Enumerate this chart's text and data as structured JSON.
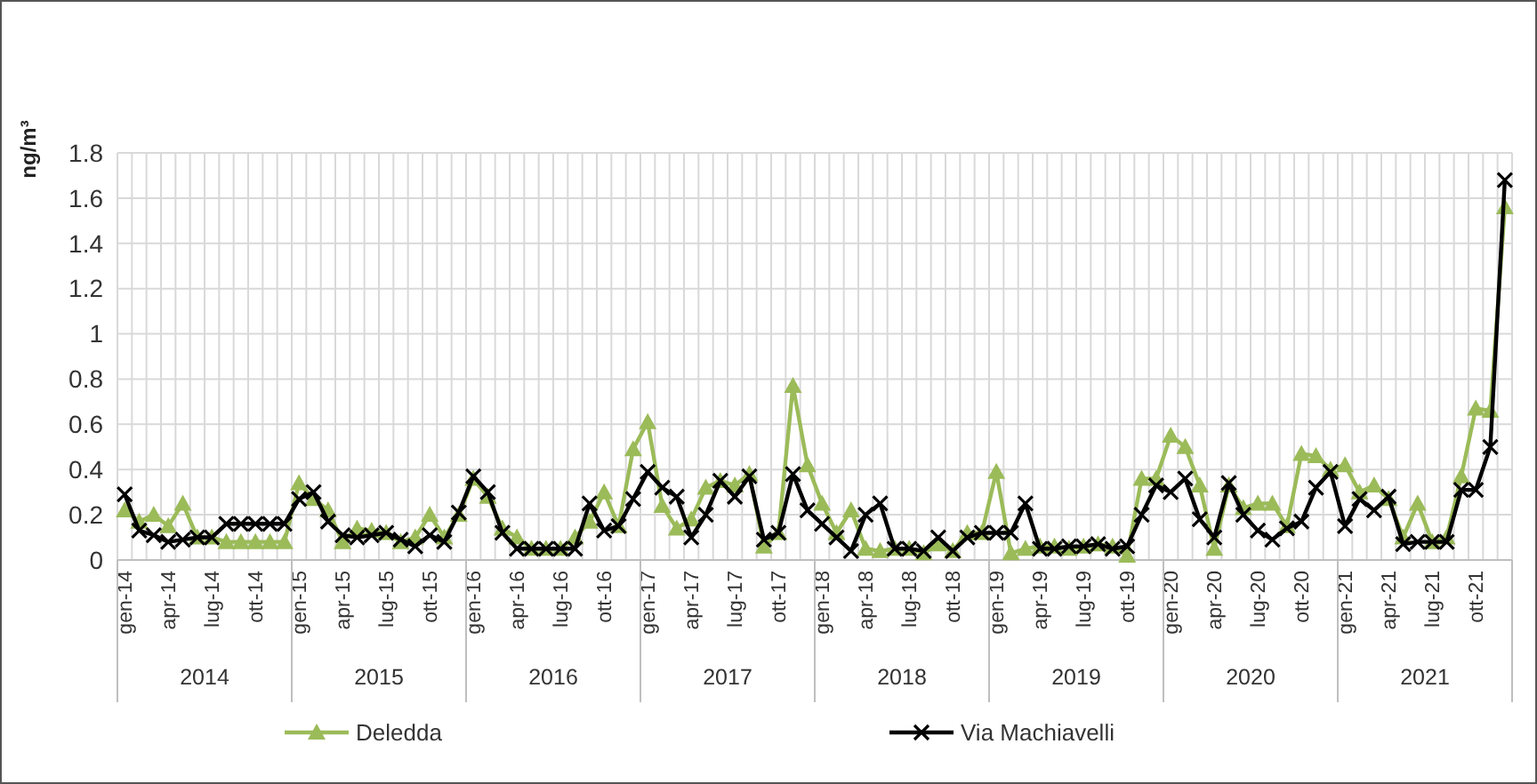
{
  "chart_data": {
    "type": "line",
    "ylabel": "ng/m³",
    "categories": [
      "gen-14",
      null,
      null,
      "apr-14",
      null,
      null,
      "lug-14",
      null,
      null,
      "ott-14",
      null,
      null,
      "gen-15",
      null,
      null,
      "apr-15",
      null,
      null,
      "lug-15",
      null,
      null,
      "ott-15",
      null,
      null,
      "gen-16",
      null,
      null,
      "apr-16",
      null,
      null,
      "lug-16",
      null,
      null,
      "ott-16",
      null,
      null,
      "gen-17",
      null,
      null,
      "apr-17",
      null,
      null,
      "lug-17",
      null,
      null,
      "ott-17",
      null,
      null,
      "gen-18",
      null,
      null,
      "apr-18",
      null,
      null,
      "lug-18",
      null,
      null,
      "ott-18",
      null,
      null,
      "gen-19",
      null,
      null,
      "apr-19",
      null,
      null,
      "lug-19",
      null,
      null,
      "ott-19",
      null,
      null,
      "gen-20",
      null,
      null,
      "apr-20",
      null,
      null,
      "lug-20",
      null,
      null,
      "ott-20",
      null,
      null,
      "gen-21",
      null,
      null,
      "apr-21",
      null,
      null,
      "lug-21",
      null,
      null,
      "ott-21",
      null,
      null
    ],
    "annotations": [
      "2014",
      "2015",
      "2016",
      "2017",
      "2018",
      "2019",
      "2020",
      "2021"
    ],
    "series": [
      {
        "name": "Deledda",
        "color": "#9bbb59",
        "marker": "triangle",
        "values": [
          0.22,
          0.17,
          0.2,
          0.15,
          0.25,
          0.1,
          0.1,
          0.08,
          0.08,
          0.08,
          0.08,
          0.08,
          0.34,
          0.27,
          0.22,
          0.08,
          0.14,
          0.13,
          0.12,
          0.08,
          0.1,
          0.2,
          0.1,
          0.2,
          0.36,
          0.28,
          0.14,
          0.1,
          0.05,
          0.05,
          0.05,
          0.1,
          0.17,
          0.3,
          0.15,
          0.49,
          0.61,
          0.24,
          0.14,
          0.18,
          0.32,
          0.35,
          0.33,
          0.38,
          0.06,
          0.12,
          0.77,
          0.42,
          0.25,
          0.12,
          0.22,
          0.05,
          0.04,
          0.05,
          0.05,
          0.03,
          0.07,
          0.04,
          0.12,
          0.12,
          0.39,
          0.03,
          0.05,
          0.06,
          0.06,
          0.05,
          0.06,
          0.07,
          0.06,
          0.02,
          0.36,
          0.36,
          0.55,
          0.5,
          0.33,
          0.05,
          0.33,
          0.23,
          0.25,
          0.25,
          0.15,
          0.47,
          0.46,
          0.4,
          0.42,
          0.3,
          0.33,
          0.27,
          0.1,
          0.25,
          0.08,
          0.1,
          0.37,
          0.67,
          0.66,
          1.56
        ]
      },
      {
        "name": "Via Machiavelli",
        "color": "#000000",
        "marker": "cross",
        "values": [
          0.29,
          0.13,
          0.11,
          0.08,
          0.09,
          0.1,
          0.1,
          0.16,
          0.16,
          0.16,
          0.16,
          0.16,
          0.27,
          0.3,
          0.17,
          0.11,
          0.1,
          0.11,
          0.12,
          0.09,
          0.06,
          0.11,
          0.08,
          0.21,
          0.37,
          0.3,
          0.12,
          0.05,
          0.05,
          0.05,
          0.05,
          0.05,
          0.25,
          0.13,
          0.15,
          0.27,
          0.39,
          0.32,
          0.28,
          0.1,
          0.2,
          0.35,
          0.28,
          0.37,
          0.09,
          0.12,
          0.38,
          0.22,
          0.16,
          0.1,
          0.04,
          0.2,
          0.25,
          0.05,
          0.05,
          0.04,
          0.1,
          0.04,
          0.1,
          0.12,
          0.12,
          0.12,
          0.25,
          0.05,
          0.05,
          0.06,
          0.06,
          0.07,
          0.05,
          0.06,
          0.2,
          0.33,
          0.3,
          0.36,
          0.18,
          0.1,
          0.34,
          0.2,
          0.13,
          0.09,
          0.14,
          0.17,
          0.32,
          0.39,
          0.15,
          0.27,
          0.22,
          0.28,
          0.07,
          0.08,
          0.08,
          0.08,
          0.31,
          0.31,
          0.5,
          1.68
        ]
      }
    ],
    "ylim": [
      0,
      1.8
    ],
    "yticks": [
      0,
      0.2,
      0.4,
      0.6,
      0.8,
      1,
      1.2,
      1.4,
      1.6,
      1.8
    ],
    "grid": true,
    "legend": "bottom"
  }
}
